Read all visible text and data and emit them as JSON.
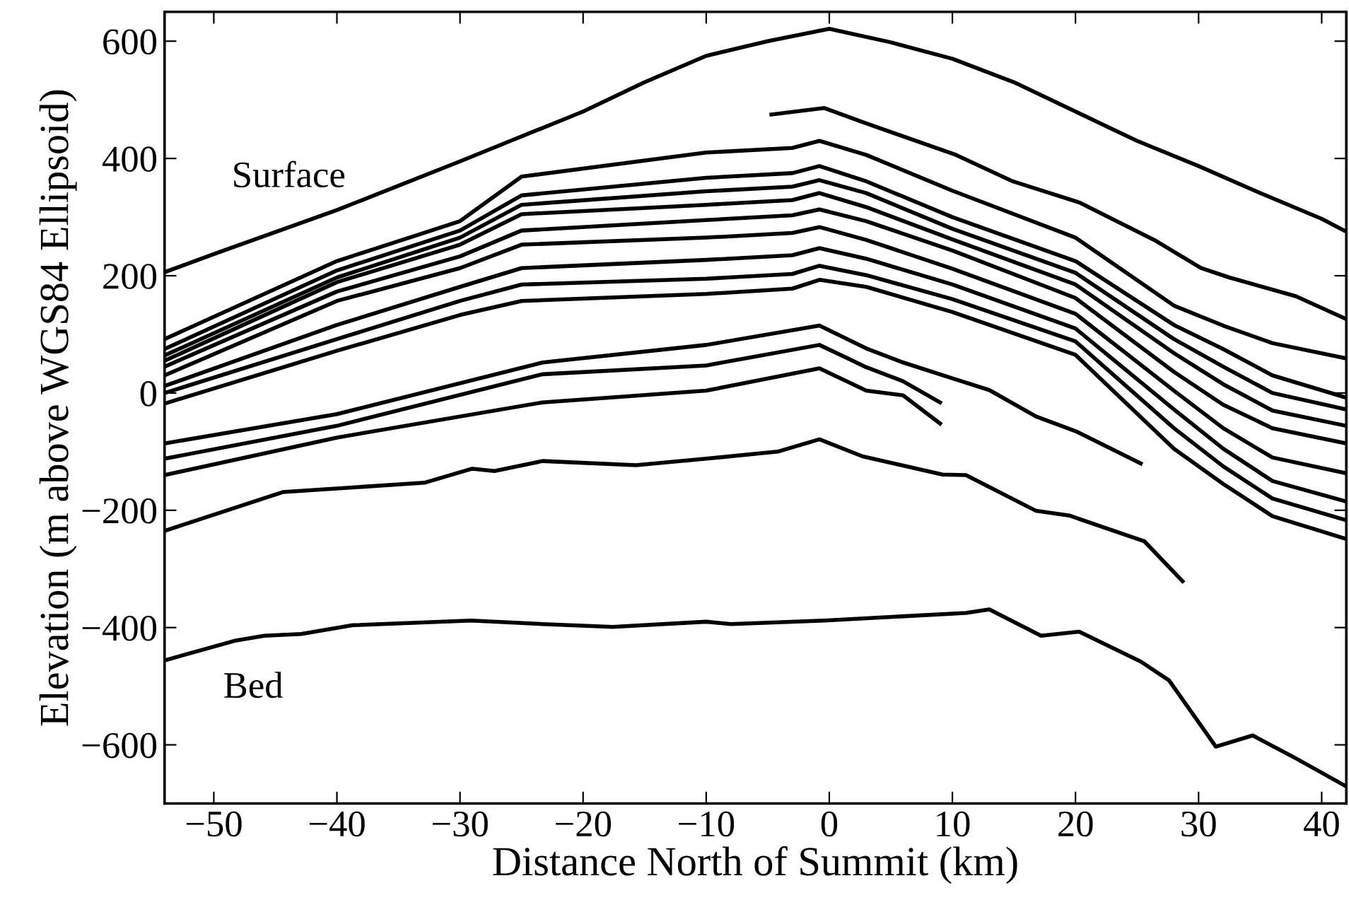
{
  "chart_data": {
    "type": "line",
    "xlabel": "Distance North of Summit (km)",
    "ylabel": "Elevation (m above WGS84 Ellipsoid)",
    "xlim": [
      -54,
      42
    ],
    "ylim": [
      -700,
      650
    ],
    "xticks": [
      -50,
      -40,
      -30,
      -20,
      -10,
      0,
      10,
      20,
      30,
      40
    ],
    "yticks": [
      -600,
      -400,
      -200,
      0,
      200,
      400,
      600
    ],
    "grid": false,
    "legend": false,
    "marker": "none",
    "line_style": "solid",
    "annotations": [
      "Surface",
      "Bed"
    ],
    "series": [
      {
        "color": "#000000",
        "x": [
          -54,
          -50,
          -40,
          -30,
          -20,
          -15,
          -10,
          -5,
          0,
          5,
          10,
          15,
          20,
          25,
          30,
          35,
          40,
          42
        ],
        "values": [
          206,
          237,
          312,
          395,
          480,
          530,
          575,
          600,
          621,
          598,
          570,
          530,
          480,
          430,
          387,
          341,
          297,
          275
        ]
      },
      {
        "color": "#000000",
        "x": [
          -4.7,
          -0.4,
          2.7,
          10.3,
          14.9,
          20.3,
          26.4,
          30.2,
          32.5,
          37.9,
          42
        ],
        "values": [
          475,
          486,
          462,
          406,
          361,
          325,
          261,
          213,
          197,
          165,
          126
        ]
      },
      {
        "color": "#000000",
        "x": [
          -54,
          -40,
          -30,
          -25,
          -10,
          -3,
          -0.8,
          3,
          10,
          20,
          28,
          32,
          36,
          42
        ],
        "values": [
          92,
          225,
          293,
          369,
          410,
          418,
          430,
          406,
          345,
          265,
          149,
          115,
          85,
          59
        ]
      },
      {
        "color": "#000000",
        "x": [
          -54,
          -40,
          -30,
          -25,
          -10,
          -3,
          -0.8,
          3,
          10,
          20,
          28,
          32,
          36,
          42
        ],
        "values": [
          75,
          209,
          277,
          337,
          367,
          375,
          387,
          361,
          300,
          225,
          116,
          75,
          30,
          -8
        ]
      },
      {
        "color": "#000000",
        "x": [
          -54,
          -40,
          -30,
          -25,
          -10,
          -3,
          -0.8,
          3,
          10,
          20,
          28,
          32,
          36,
          42
        ],
        "values": [
          64,
          197,
          265,
          321,
          344,
          352,
          363,
          341,
          280,
          205,
          92,
          45,
          0,
          -28
        ]
      },
      {
        "color": "#000000",
        "x": [
          -54,
          -40,
          -30,
          -25,
          -10,
          -3,
          -0.8,
          3,
          10,
          20,
          28,
          32,
          36,
          42
        ],
        "values": [
          55,
          189,
          253,
          305,
          321,
          329,
          341,
          317,
          262,
          185,
          68,
          15,
          -30,
          -56
        ]
      },
      {
        "color": "#000000",
        "x": [
          -54,
          -40,
          -30,
          -25,
          -10,
          -3,
          -0.8,
          3,
          10,
          20,
          28,
          32,
          36,
          42
        ],
        "values": [
          45,
          173,
          233,
          277,
          295,
          303,
          313,
          293,
          243,
          162,
          36,
          -20,
          -60,
          -86
        ]
      },
      {
        "color": "#000000",
        "x": [
          -54,
          -40,
          -30,
          -25,
          -10,
          -3,
          -0.8,
          3,
          10,
          20,
          28,
          32,
          36,
          42
        ],
        "values": [
          30,
          157,
          213,
          253,
          265,
          273,
          283,
          261,
          212,
          135,
          4,
          -60,
          -110,
          -137
        ]
      },
      {
        "color": "#000000",
        "x": [
          -54,
          -40,
          -30,
          -25,
          -10,
          -3,
          -0.8,
          3,
          10,
          20,
          28,
          32,
          36,
          42
        ],
        "values": [
          12,
          116,
          181,
          213,
          227,
          235,
          247,
          229,
          185,
          110,
          -28,
          -95,
          -150,
          -185
        ]
      },
      {
        "color": "#000000",
        "x": [
          -54,
          -40,
          -30,
          -25,
          -10,
          -3,
          -0.8,
          3,
          10,
          20,
          28,
          32,
          36,
          42
        ],
        "values": [
          0,
          92,
          157,
          185,
          195,
          203,
          217,
          201,
          160,
          88,
          -60,
          -125,
          -180,
          -217
        ]
      },
      {
        "color": "#000000",
        "x": [
          -54,
          -40,
          -30,
          -25,
          -10,
          -3,
          -0.8,
          3,
          10,
          20,
          28,
          32,
          36,
          42
        ],
        "values": [
          -18,
          72,
          133,
          157,
          169,
          178,
          193,
          181,
          138,
          65,
          -95,
          -155,
          -210,
          -249
        ]
      },
      {
        "color": "#000000",
        "x": [
          -54,
          -40,
          -23.3,
          -10,
          -0.8,
          3,
          6,
          10,
          13,
          16.8,
          20,
          25.3
        ],
        "values": [
          -86,
          -36,
          52,
          82,
          115,
          76,
          52,
          25,
          5,
          -40,
          -65,
          -120
        ]
      },
      {
        "color": "#000000",
        "x": [
          -54,
          -40,
          -23.3,
          -10,
          -0.8,
          3,
          6,
          9
        ],
        "values": [
          -112,
          -56,
          32,
          47,
          82,
          44,
          20,
          -16
        ]
      },
      {
        "color": "#000000",
        "x": [
          -54,
          -40,
          -23.3,
          -10,
          -0.8,
          3,
          6,
          9
        ],
        "values": [
          -140,
          -76,
          -16,
          4,
          42,
          4,
          -4,
          -52
        ]
      },
      {
        "color": "#000000",
        "x": [
          -54,
          -44.4,
          -32.9,
          -29,
          -27.2,
          -23.3,
          -15.7,
          -10,
          -4.2,
          -0.8,
          2.7,
          9.2,
          11.1,
          16.8,
          19.5,
          24.5,
          25.6,
          28.7
        ],
        "values": [
          -235,
          -169,
          -153,
          -129,
          -133,
          -116,
          -123,
          -112,
          -100,
          -79,
          -108,
          -139,
          -140,
          -201,
          -209,
          -245,
          -253,
          -321
        ]
      },
      {
        "color": "#000000",
        "x": [
          -54,
          -48.2,
          -45.9,
          -42.9,
          -38.7,
          -29.1,
          -23.3,
          -17.6,
          -10,
          -8,
          -0.4,
          11.1,
          13,
          17.2,
          20.3,
          25.3,
          27.6,
          31.4,
          34.4,
          37.9,
          42
        ],
        "values": [
          -456,
          -422,
          -414,
          -411,
          -396,
          -388,
          -394,
          -399,
          -390,
          -394,
          -388,
          -375,
          -369,
          -414,
          -407,
          -458,
          -490,
          -603,
          -584,
          -623,
          -671
        ]
      }
    ]
  }
}
